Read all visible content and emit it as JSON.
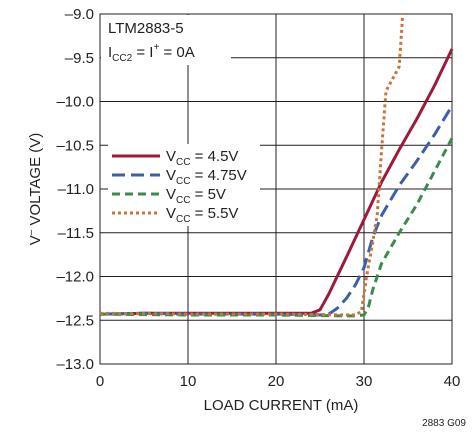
{
  "chart_data": {
    "type": "line",
    "title": "",
    "xlabel": "LOAD CURRENT (mA)",
    "ylabel_parts": {
      "v": "V",
      "sup": "–",
      "rest": " VOLTAGE (V)"
    },
    "xlim": [
      0,
      40
    ],
    "ylim": [
      -13.0,
      -9.0
    ],
    "x_ticks": [
      "0",
      "10",
      "20",
      "30",
      "40"
    ],
    "x_tick_values": [
      0,
      10,
      20,
      30,
      40
    ],
    "y_ticks": [
      "–9.0",
      "–9.5",
      "–10.0",
      "–10.5",
      "–11.0",
      "–11.5",
      "–12.0",
      "–12.5",
      "–13.0"
    ],
    "y_tick_values": [
      -9.0,
      -9.5,
      -10.0,
      -10.5,
      -11.0,
      -11.5,
      -12.0,
      -12.5,
      -13.0
    ],
    "grid": true,
    "annotation": {
      "line1": "LTM2883-5",
      "line2_main": "I",
      "line2_sub": "CC2",
      "line2_mid": " = I",
      "line2_sup": "+",
      "line2_end": " = 0A"
    },
    "figure_id": "2883 G09",
    "legend_position": "left",
    "series": [
      {
        "name_main": "V",
        "name_sub": "CC",
        "name_end": " = 4.5V",
        "color": "#9b1b3a",
        "dash": "solid",
        "points": [
          [
            0,
            -12.43
          ],
          [
            5,
            -12.42
          ],
          [
            10,
            -12.42
          ],
          [
            15,
            -12.42
          ],
          [
            20,
            -12.42
          ],
          [
            24,
            -12.42
          ],
          [
            25,
            -12.38
          ],
          [
            26,
            -12.2
          ],
          [
            28,
            -11.78
          ],
          [
            30,
            -11.35
          ],
          [
            32,
            -10.92
          ],
          [
            34,
            -10.55
          ],
          [
            36,
            -10.2
          ],
          [
            38,
            -9.82
          ],
          [
            40,
            -9.4
          ]
        ]
      },
      {
        "name_main": "V",
        "name_sub": "CC",
        "name_end": " = 4.75V",
        "color": "#3e5fa8",
        "dash": "long",
        "points": [
          [
            0,
            -12.43
          ],
          [
            5,
            -12.42
          ],
          [
            10,
            -12.43
          ],
          [
            15,
            -12.43
          ],
          [
            20,
            -12.43
          ],
          [
            25,
            -12.44
          ],
          [
            26,
            -12.43
          ],
          [
            27,
            -12.36
          ],
          [
            28,
            -12.25
          ],
          [
            29,
            -12.1
          ],
          [
            30,
            -11.9
          ],
          [
            31,
            -11.55
          ],
          [
            32,
            -11.3
          ],
          [
            34,
            -10.96
          ],
          [
            36,
            -10.68
          ],
          [
            38,
            -10.38
          ],
          [
            40,
            -10.05
          ]
        ]
      },
      {
        "name_main": "V",
        "name_sub": "CC",
        "name_end": " = 5V",
        "color": "#3d8a4a",
        "dash": "medium",
        "points": [
          [
            0,
            -12.43
          ],
          [
            10,
            -12.44
          ],
          [
            20,
            -12.44
          ],
          [
            28,
            -12.45
          ],
          [
            29,
            -12.45
          ],
          [
            30,
            -12.44
          ],
          [
            30.5,
            -12.35
          ],
          [
            31,
            -12.15
          ],
          [
            32,
            -11.85
          ],
          [
            34,
            -11.5
          ],
          [
            36,
            -11.18
          ],
          [
            38,
            -10.8
          ],
          [
            40,
            -10.42
          ]
        ]
      },
      {
        "name_main": "V",
        "name_sub": "CC",
        "name_end": " = 5.5V",
        "color": "#c8743a",
        "dash": "dotted",
        "points": [
          [
            0,
            -12.42
          ],
          [
            10,
            -12.43
          ],
          [
            20,
            -12.43
          ],
          [
            29,
            -12.44
          ],
          [
            29.7,
            -12.4
          ],
          [
            30.3,
            -12.0
          ],
          [
            31,
            -11.6
          ],
          [
            31.5,
            -11.3
          ],
          [
            32,
            -10.55
          ],
          [
            32.5,
            -9.88
          ],
          [
            33.2,
            -9.75
          ],
          [
            34,
            -9.6
          ],
          [
            34.2,
            -9.3
          ],
          [
            34.4,
            -9.0
          ]
        ]
      }
    ]
  }
}
